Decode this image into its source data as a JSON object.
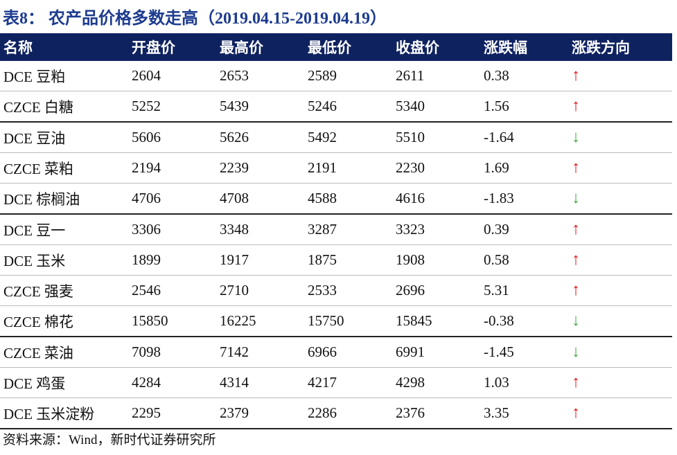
{
  "title": "表8：  农产品价格多数走高（2019.04.15-2019.04.19）",
  "table": {
    "header": [
      "名称",
      "开盘价",
      "最高价",
      "最低价",
      "收盘价",
      "涨跌幅",
      "涨跌方向"
    ],
    "rows": [
      [
        "DCE 豆粕",
        "2604",
        "2653",
        "2589",
        "2611",
        "0.38",
        "↑"
      ],
      [
        "CZCE 白糖",
        "5252",
        "5439",
        "5246",
        "5340",
        "1.56",
        "↑"
      ],
      [
        "DCE 豆油",
        "5606",
        "5626",
        "5492",
        "5510",
        "-1.64",
        "↓"
      ],
      [
        "CZCE 菜粕",
        "2194",
        "2239",
        "2191",
        "2230",
        "1.69",
        "↑"
      ],
      [
        "DCE 棕榈油",
        "4706",
        "4708",
        "4588",
        "4616",
        "-1.83",
        "↓"
      ],
      [
        "DCE 豆一",
        "3306",
        "3348",
        "3287",
        "3323",
        "0.39",
        "↑"
      ],
      [
        "DCE 玉米",
        "1899",
        "1917",
        "1875",
        "1908",
        "0.58",
        "↑"
      ],
      [
        "CZCE 强麦",
        "2546",
        "2710",
        "2533",
        "2696",
        "5.31",
        "↑"
      ],
      [
        "CZCE 棉花",
        "15850",
        "16225",
        "15750",
        "15845",
        "-0.38",
        "↓"
      ],
      [
        "CZCE 菜油",
        "7098",
        "7142",
        "6966",
        "6991",
        "-1.45",
        "↓"
      ],
      [
        "DCE 鸡蛋",
        "4284",
        "4314",
        "4217",
        "4298",
        "1.03",
        "↑"
      ],
      [
        "DCE 玉米淀粉",
        "2295",
        "2379",
        "2286",
        "2376",
        "3.35",
        "↑"
      ]
    ]
  },
  "source": "资料来源：Wind，新时代证券研究所"
}
